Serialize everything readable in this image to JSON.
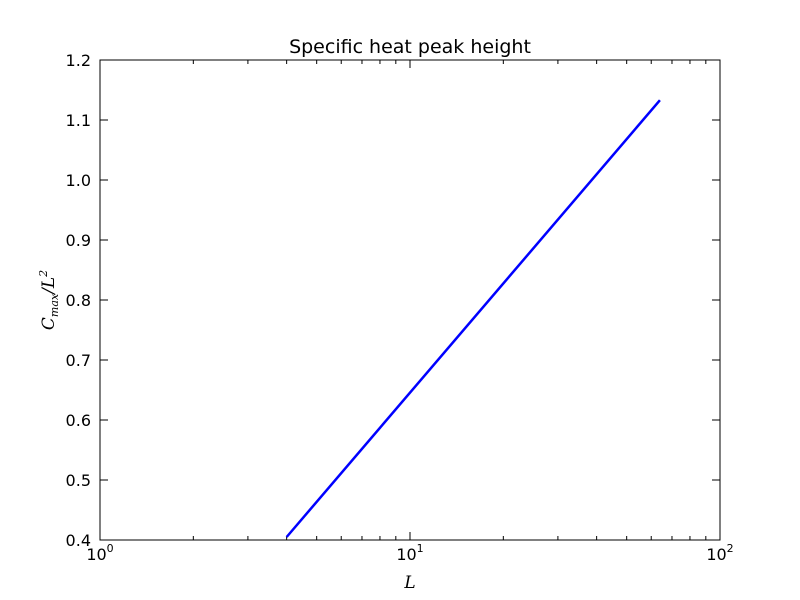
{
  "chart_data": {
    "type": "line",
    "title": "Specific heat peak height",
    "xlabel": "L",
    "ylabel": "C_max/L^2",
    "xscale": "log",
    "xlim": [
      1,
      100
    ],
    "ylim": [
      0.4,
      1.2
    ],
    "grid": false,
    "x_ticks": [
      {
        "value": 1,
        "base": "10",
        "exp": "0"
      },
      {
        "value": 10,
        "base": "10",
        "exp": "1"
      },
      {
        "value": 100,
        "base": "10",
        "exp": "2"
      }
    ],
    "y_ticks": [
      "0.4",
      "0.5",
      "0.6",
      "0.7",
      "0.8",
      "0.9",
      "1.0",
      "1.1",
      "1.2"
    ],
    "series": [
      {
        "color": "#0000ff",
        "x": [
          4,
          64
        ],
        "y": [
          0.405,
          1.133
        ]
      }
    ]
  }
}
